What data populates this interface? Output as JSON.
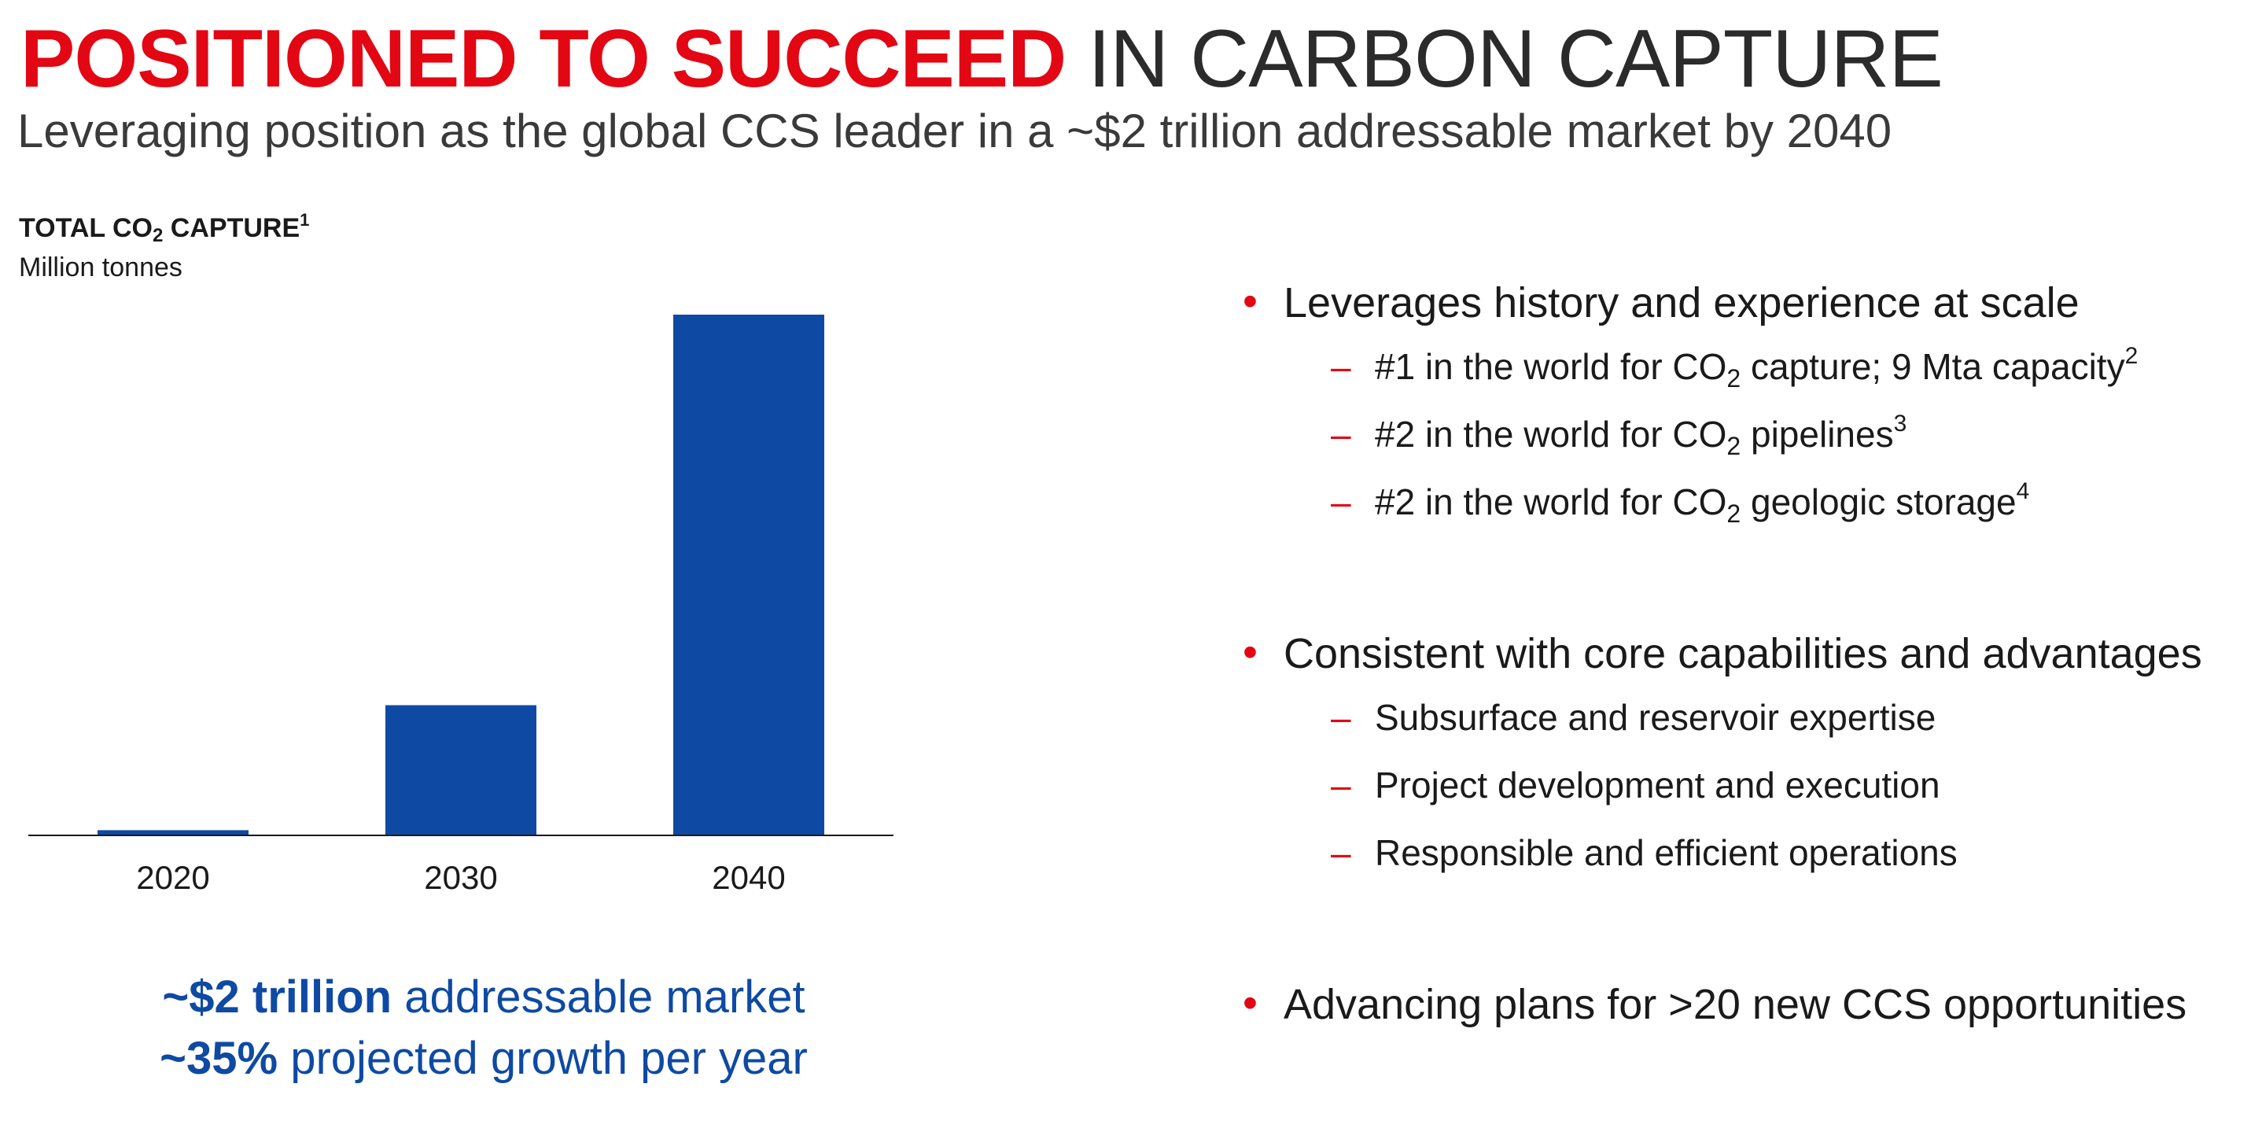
{
  "header": {
    "title_emphasis": "POSITIONED TO SUCCEED",
    "title_rest": "IN CARBON CAPTURE",
    "subtitle": "Leveraging position as the global CCS leader in a ~$2 trillion addressable market by 2040"
  },
  "chart_data": {
    "type": "bar",
    "title_prefix": "TOTAL CO",
    "title_sub": "2",
    "title_suffix": " CAPTURE",
    "title_footnote": "1",
    "unit": "Million tonnes",
    "categories": [
      "2020",
      "2030",
      "2040"
    ],
    "values": [
      40,
      1000,
      4000
    ],
    "ylim": [
      0,
      4000
    ],
    "bar_color": "#0e4aa3",
    "grid": false
  },
  "callouts": [
    {
      "bold": "~$2 trillion",
      "text": " addressable market"
    },
    {
      "bold": "~35%",
      "text": " projected growth per year"
    }
  ],
  "bullets": [
    {
      "text": "Leverages history and experience at scale",
      "subs": [
        {
          "parts": [
            {
              "t": "#1 in the world for CO"
            },
            {
              "sub": "2"
            },
            {
              "t": " capture; 9 Mta capacity"
            },
            {
              "sup": "2"
            }
          ]
        },
        {
          "parts": [
            {
              "t": "#2 in the world for CO"
            },
            {
              "sub": "2"
            },
            {
              "t": " pipelines"
            },
            {
              "sup": "3"
            }
          ]
        },
        {
          "parts": [
            {
              "t": "#2 in the world for CO"
            },
            {
              "sub": "2"
            },
            {
              "t": " geologic storage"
            },
            {
              "sup": "4"
            }
          ]
        }
      ]
    },
    {
      "text": "Consistent with core capabilities and advantages",
      "subs": [
        {
          "parts": [
            {
              "t": "Subsurface and reservoir expertise"
            }
          ]
        },
        {
          "parts": [
            {
              "t": "Project development and execution"
            }
          ]
        },
        {
          "parts": [
            {
              "t": "Responsible and efficient operations"
            }
          ]
        }
      ]
    },
    {
      "text": "Advancing plans for >20 new CCS opportunities",
      "subs": []
    }
  ],
  "bullet_symbol": "•",
  "dash_symbol": "–",
  "colors": {
    "accent": "#e30613",
    "brand_blue": "#0e4aa3"
  }
}
